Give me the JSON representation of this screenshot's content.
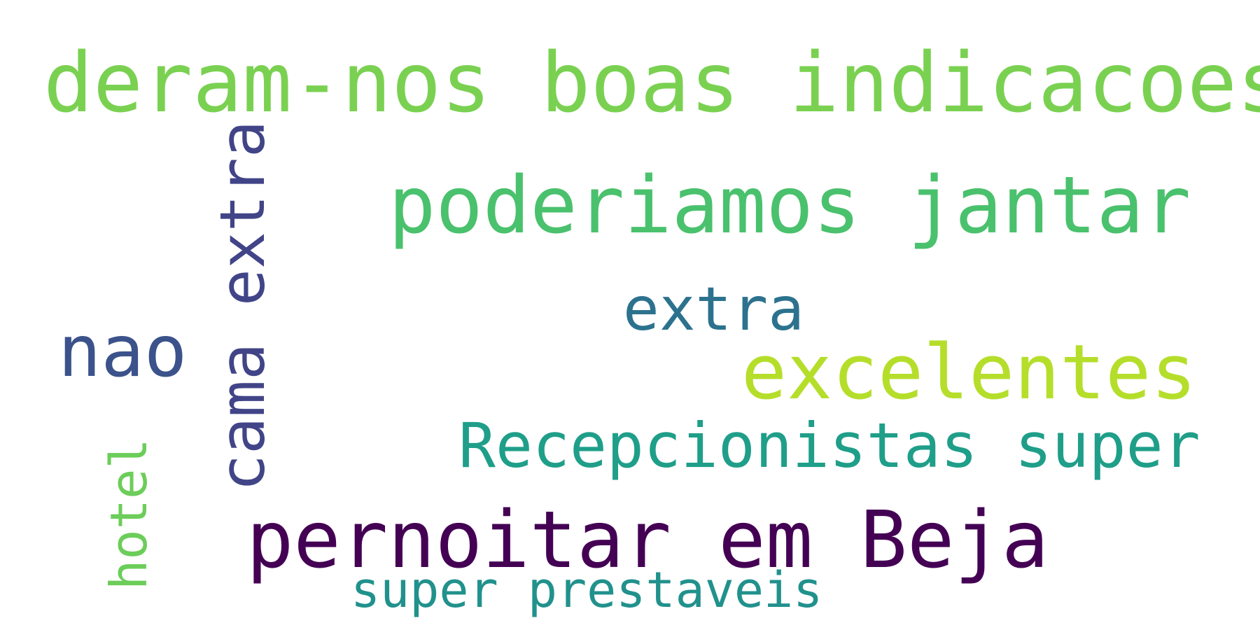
{
  "words": [
    {
      "text": "deram-nos boas indicacoes",
      "color": "#7ad151"
    },
    {
      "text": "poderiamos jantar",
      "color": "#4ac16d"
    },
    {
      "text": "extra",
      "color": "#2c728e"
    },
    {
      "text": "nao",
      "color": "#3b528b"
    },
    {
      "text": "excelentes",
      "color": "#b5de2b"
    },
    {
      "text": "Recepcionistas super",
      "color": "#1f9e89"
    },
    {
      "text": "pernoitar em Beja",
      "color": "#440154"
    },
    {
      "text": "super prestaveis",
      "color": "#21918c"
    },
    {
      "text": "cama extra",
      "color": "#414487"
    },
    {
      "text": "hotel",
      "color": "#6ccd5a"
    }
  ]
}
